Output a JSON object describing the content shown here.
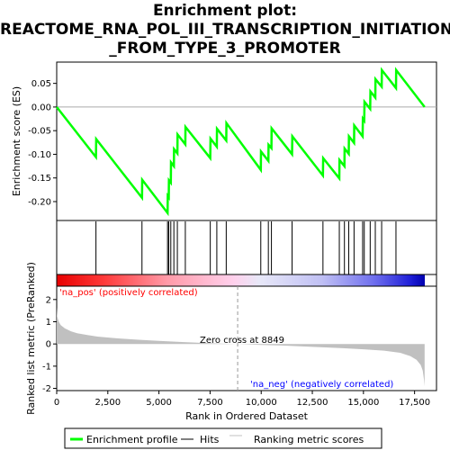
{
  "title_lines": [
    "Enrichment plot:",
    "REACTOME_RNA_POL_III_TRANSCRIPTION_INITIATION",
    "_FROM_TYPE_3_PROMOTER"
  ],
  "legend": {
    "enrichment": "Enrichment profile",
    "hits": "Hits",
    "ranking": "Ranking metric scores"
  },
  "annotations": {
    "pos": "'na_pos' (positively correlated)",
    "neg": "'na_neg' (negatively correlated)",
    "zero_cross": "Zero cross at 8849"
  },
  "colors": {
    "enrichment_line": "#00ff00",
    "pos_label": "#ff0000",
    "neg_label": "#0000ff",
    "ranking_fill": "#c0c0c0"
  },
  "chart_data": {
    "type": "line",
    "xlabel": "Rank in Ordered Dataset",
    "xlim": [
      0,
      18000
    ],
    "x_ticks": [
      0,
      2500,
      5000,
      7500,
      10000,
      12500,
      15000,
      17500
    ],
    "x_tick_labels": [
      "0",
      "2,500",
      "5,000",
      "7,500",
      "10,000",
      "12,500",
      "15,000",
      "17,500"
    ],
    "zero_cross": 8849,
    "es_panel": {
      "ylabel": "Enrichment score (ES)",
      "ylim": [
        -0.24,
        0.095
      ],
      "y_ticks": [
        0.05,
        0.0,
        -0.05,
        -0.1,
        -0.15,
        -0.2
      ],
      "y_tick_labels": [
        "0.05",
        "0.00",
        "-0.05",
        "-0.10",
        "-0.15",
        "-0.20"
      ],
      "series": [
        {
          "name": "Enrichment profile",
          "x": [
            0,
            1920,
            1930,
            4170,
            4180,
            5420,
            5430,
            5480,
            5490,
            5580,
            5590,
            5730,
            5740,
            5900,
            5910,
            6290,
            6300,
            7510,
            7520,
            7830,
            7840,
            8290,
            8300,
            9980,
            9990,
            10350,
            10360,
            10500,
            10510,
            11510,
            11520,
            13020,
            13030,
            13820,
            13830,
            14070,
            14080,
            14280,
            14290,
            14540,
            14550,
            14960,
            14970,
            15040,
            15050,
            15330,
            15340,
            15580,
            15590,
            15890,
            15900,
            16590,
            16600,
            17990
          ],
          "y": [
            0.0,
            -0.106,
            -0.068,
            -0.192,
            -0.154,
            -0.224,
            -0.188,
            -0.191,
            -0.155,
            -0.16,
            -0.117,
            -0.125,
            -0.089,
            -0.098,
            -0.058,
            -0.079,
            -0.042,
            -0.108,
            -0.067,
            -0.084,
            -0.046,
            -0.071,
            -0.034,
            -0.133,
            -0.094,
            -0.114,
            -0.08,
            -0.087,
            -0.045,
            -0.1,
            -0.062,
            -0.145,
            -0.108,
            -0.151,
            -0.112,
            -0.125,
            -0.088,
            -0.099,
            -0.062,
            -0.076,
            -0.039,
            -0.062,
            -0.025,
            -0.029,
            0.011,
            -0.004,
            0.033,
            0.02,
            0.059,
            0.043,
            0.078,
            0.04,
            0.078,
            0.0
          ]
        }
      ]
    },
    "hits": [
      1920,
      4170,
      5420,
      5480,
      5580,
      5730,
      5900,
      6290,
      7510,
      7830,
      8290,
      9980,
      10350,
      10500,
      11510,
      13020,
      13820,
      14070,
      14280,
      14540,
      14960,
      15040,
      15330,
      15580,
      15890,
      16590
    ],
    "ranking_panel": {
      "ylabel": "Ranked list metric (PreRanked)",
      "ylim": [
        -2.1,
        2.6
      ],
      "y_ticks": [
        2,
        1,
        0,
        -1,
        -2
      ],
      "y_tick_labels": [
        "2",
        "1",
        "0",
        "-1",
        "-2"
      ],
      "series": [
        {
          "name": "Ranking metric scores",
          "x": [
            0,
            20,
            100,
            200,
            400,
            700,
            1000,
            1500,
            2000,
            3000,
            4000,
            5000,
            6000,
            7000,
            8000,
            8849,
            10000,
            11000,
            12000,
            13000,
            14000,
            15000,
            16000,
            16800,
            17300,
            17600,
            17800,
            17900,
            17960,
            17990
          ],
          "values": [
            1.65,
            1.25,
            1.0,
            0.85,
            0.7,
            0.57,
            0.48,
            0.4,
            0.33,
            0.25,
            0.19,
            0.14,
            0.09,
            0.05,
            0.02,
            0.0,
            -0.04,
            -0.07,
            -0.11,
            -0.15,
            -0.19,
            -0.24,
            -0.3,
            -0.4,
            -0.55,
            -0.72,
            -0.95,
            -1.2,
            -1.6,
            -1.9
          ]
        }
      ]
    }
  }
}
